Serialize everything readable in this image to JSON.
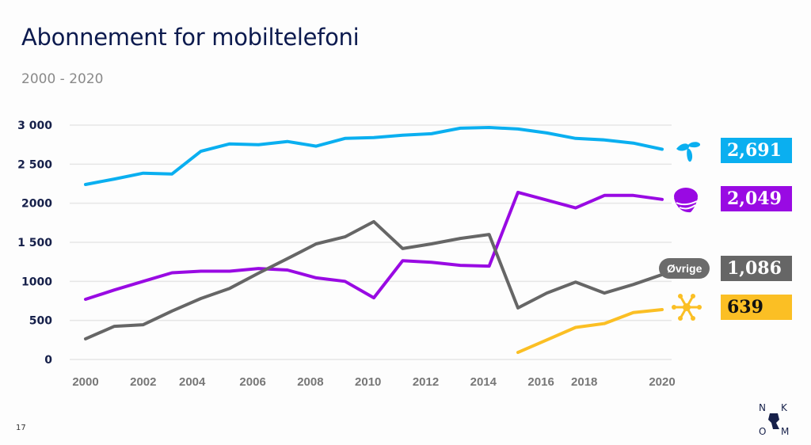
{
  "header": {
    "title": "Abonnement for mobiltelefoni",
    "subtitle": "2000 - 2020"
  },
  "page_number": "17",
  "logo": {
    "letters": [
      "N",
      "K",
      "O",
      "M"
    ],
    "name": "NKOM"
  },
  "colors": {
    "telenor": "#0aaff0",
    "telia": "#990ae3",
    "ovrige": "#666666",
    "ice": "#fbbf24"
  },
  "chart_data": {
    "type": "line",
    "title": "Abonnement for mobiltelefoni",
    "subtitle": "2000 - 2020",
    "xlabel": "",
    "ylabel": "",
    "ylim": [
      0,
      3000
    ],
    "grid": true,
    "y_ticks": [
      {
        "value": 0,
        "label": "0"
      },
      {
        "value": 500,
        "label": "500"
      },
      {
        "value": 1000,
        "label": "1000"
      },
      {
        "value": 1500,
        "label": "1 500"
      },
      {
        "value": 2000,
        "label": "2000"
      },
      {
        "value": 2500,
        "label": "2 500"
      },
      {
        "value": 3000,
        "label": "3 000"
      }
    ],
    "x_ticks": [
      {
        "value": 2000,
        "label": "2000"
      },
      {
        "value": 2002,
        "label": "2002"
      },
      {
        "value": 2003.7,
        "label": "2004"
      },
      {
        "value": 2005.8,
        "label": "2006"
      },
      {
        "value": 2007.8,
        "label": "2008"
      },
      {
        "value": 2009.8,
        "label": "2010"
      },
      {
        "value": 2011.8,
        "label": "2012"
      },
      {
        "value": 2013.8,
        "label": "2014"
      },
      {
        "value": 2015.8,
        "label": "2016"
      },
      {
        "value": 2017.3,
        "label": "2018"
      },
      {
        "value": 2020,
        "label": "2020"
      }
    ],
    "x": [
      2000,
      2001,
      2002,
      2003,
      2004,
      2005,
      2006,
      2007,
      2008,
      2009,
      2010,
      2011,
      2012,
      2013,
      2014,
      2015,
      2016,
      2017,
      2018,
      2019,
      2020
    ],
    "series": [
      {
        "name": "Telenor",
        "color": "#0aaff0",
        "icon": "telenor-icon",
        "end_label": "2,691",
        "values": [
          2240,
          2310,
          2385,
          2375,
          2665,
          2760,
          2750,
          2790,
          2730,
          2830,
          2840,
          2870,
          2890,
          2960,
          2970,
          2950,
          2900,
          2830,
          2810,
          2770,
          2691
        ]
      },
      {
        "name": "Telia",
        "color": "#990ae3",
        "icon": "telia-icon",
        "end_label": "2,049",
        "values": [
          770,
          890,
          1000,
          1110,
          1130,
          1130,
          1165,
          1145,
          1045,
          1000,
          790,
          1265,
          1245,
          1205,
          1195,
          2140,
          2040,
          1940,
          2100,
          2100,
          2049
        ]
      },
      {
        "name": "Øvrige",
        "color": "#666666",
        "icon": "ovrige-pill",
        "end_label": "1,086",
        "values": [
          265,
          425,
          445,
          620,
          780,
          910,
          1105,
          1290,
          1480,
          1570,
          1765,
          1420,
          1480,
          1550,
          1600,
          660,
          850,
          990,
          850,
          960,
          1086
        ]
      },
      {
        "name": "Ice",
        "color": "#fbbf24",
        "icon": "ice-icon",
        "end_label": "639",
        "values": [
          null,
          null,
          null,
          null,
          null,
          null,
          null,
          null,
          null,
          null,
          null,
          null,
          null,
          null,
          null,
          90,
          250,
          410,
          460,
          600,
          639
        ]
      }
    ],
    "legend": "right-end-labels"
  }
}
